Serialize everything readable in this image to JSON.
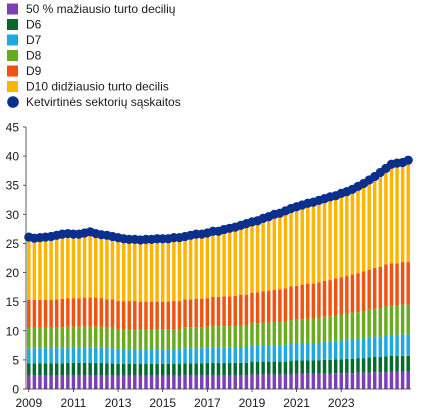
{
  "chart_data": {
    "type": "bar",
    "stacked": true,
    "legend_position": "top-left",
    "grid": false,
    "ylim": [
      0,
      45
    ],
    "y_ticks": [
      "0",
      "5",
      "10",
      "15",
      "20",
      "25",
      "30",
      "35",
      "40",
      "45"
    ],
    "x_tick_labels": [
      "2009",
      "2011",
      "2013",
      "2015",
      "2017",
      "2019",
      "2021",
      "2023"
    ],
    "x_quarter_start": "2009Q1",
    "series": [
      {
        "name": "50 % mažiausio turto decilių",
        "color": "#7b3fb6",
        "values": [
          2.4,
          2.4,
          2.4,
          2.4,
          2.4,
          2.4,
          2.4,
          2.4,
          2.4,
          2.4,
          2.4,
          2.4,
          2.4,
          2.4,
          2.4,
          2.4,
          2.3,
          2.3,
          2.3,
          2.3,
          2.3,
          2.3,
          2.3,
          2.3,
          2.3,
          2.3,
          2.3,
          2.3,
          2.4,
          2.4,
          2.4,
          2.4,
          2.4,
          2.4,
          2.4,
          2.4,
          2.4,
          2.4,
          2.4,
          2.4,
          2.5,
          2.5,
          2.5,
          2.5,
          2.5,
          2.5,
          2.5,
          2.5,
          2.6,
          2.6,
          2.6,
          2.6,
          2.6,
          2.6,
          2.6,
          2.7,
          2.7,
          2.7,
          2.7,
          2.8,
          2.8,
          2.8,
          2.9,
          2.9,
          2.9,
          3.0,
          3.0,
          3.0,
          3.0
        ]
      },
      {
        "name": "D6",
        "color": "#006b2c",
        "values": [
          2.0,
          2.0,
          2.0,
          2.0,
          2.0,
          2.0,
          2.0,
          2.1,
          2.1,
          2.1,
          2.1,
          2.1,
          2.1,
          2.1,
          2.0,
          2.0,
          2.0,
          2.0,
          2.0,
          2.0,
          2.0,
          2.0,
          2.0,
          2.0,
          2.0,
          2.0,
          2.0,
          2.0,
          2.0,
          2.0,
          2.0,
          2.0,
          2.1,
          2.1,
          2.1,
          2.1,
          2.1,
          2.1,
          2.1,
          2.1,
          2.2,
          2.2,
          2.2,
          2.2,
          2.2,
          2.2,
          2.2,
          2.3,
          2.3,
          2.3,
          2.3,
          2.3,
          2.3,
          2.4,
          2.4,
          2.4,
          2.4,
          2.5,
          2.5,
          2.5,
          2.5,
          2.6,
          2.6,
          2.6,
          2.7,
          2.7,
          2.7,
          2.7,
          2.7
        ]
      },
      {
        "name": "D7",
        "color": "#1ea8e0",
        "values": [
          2.6,
          2.6,
          2.6,
          2.6,
          2.6,
          2.6,
          2.6,
          2.6,
          2.6,
          2.6,
          2.6,
          2.6,
          2.6,
          2.6,
          2.6,
          2.6,
          2.5,
          2.5,
          2.5,
          2.5,
          2.5,
          2.5,
          2.5,
          2.5,
          2.5,
          2.5,
          2.5,
          2.5,
          2.6,
          2.6,
          2.6,
          2.6,
          2.6,
          2.6,
          2.6,
          2.6,
          2.6,
          2.7,
          2.7,
          2.7,
          2.7,
          2.7,
          2.8,
          2.8,
          2.8,
          2.8,
          2.9,
          2.9,
          2.9,
          3.0,
          3.0,
          3.0,
          3.0,
          3.1,
          3.1,
          3.2,
          3.2,
          3.2,
          3.3,
          3.3,
          3.4,
          3.4,
          3.5,
          3.5,
          3.6,
          3.6,
          3.6,
          3.7,
          3.7
        ]
      },
      {
        "name": "D8",
        "color": "#6aaa1f",
        "values": [
          3.5,
          3.5,
          3.5,
          3.5,
          3.5,
          3.5,
          3.6,
          3.6,
          3.6,
          3.6,
          3.6,
          3.6,
          3.6,
          3.6,
          3.5,
          3.5,
          3.5,
          3.5,
          3.5,
          3.5,
          3.5,
          3.5,
          3.5,
          3.5,
          3.5,
          3.5,
          3.5,
          3.5,
          3.6,
          3.6,
          3.6,
          3.6,
          3.6,
          3.7,
          3.7,
          3.7,
          3.7,
          3.7,
          3.8,
          3.8,
          3.8,
          3.9,
          3.9,
          3.9,
          4.0,
          4.0,
          4.0,
          4.1,
          4.1,
          4.1,
          4.2,
          4.2,
          4.3,
          4.3,
          4.4,
          4.4,
          4.5,
          4.5,
          4.6,
          4.6,
          4.7,
          4.8,
          4.8,
          4.9,
          5.0,
          5.0,
          5.0,
          5.1,
          5.1
        ]
      },
      {
        "name": "D9",
        "color": "#f2520f",
        "values": [
          4.8,
          4.8,
          4.8,
          4.8,
          4.8,
          4.9,
          4.9,
          4.9,
          4.9,
          4.9,
          5.0,
          5.0,
          5.0,
          4.9,
          4.9,
          4.9,
          4.8,
          4.8,
          4.8,
          4.8,
          4.7,
          4.7,
          4.7,
          4.7,
          4.7,
          4.7,
          4.8,
          4.8,
          4.8,
          4.8,
          4.9,
          4.9,
          4.9,
          5.0,
          5.0,
          5.1,
          5.1,
          5.1,
          5.2,
          5.2,
          5.3,
          5.3,
          5.4,
          5.5,
          5.5,
          5.6,
          5.7,
          5.8,
          5.8,
          5.9,
          6.0,
          6.0,
          6.1,
          6.2,
          6.2,
          6.3,
          6.4,
          6.5,
          6.6,
          6.7,
          6.8,
          6.9,
          7.0,
          7.1,
          7.2,
          7.3,
          7.3,
          7.3,
          7.3
        ]
      },
      {
        "name": "D10 didžiausio turto decilis",
        "color": "#ffb400",
        "values": [
          10.8,
          10.6,
          10.7,
          10.8,
          10.9,
          11.0,
          11.1,
          11.1,
          11.0,
          11.0,
          11.1,
          11.2,
          11.0,
          10.9,
          10.9,
          10.8,
          10.8,
          10.7,
          10.6,
          10.6,
          10.6,
          10.7,
          10.7,
          10.8,
          10.8,
          10.8,
          10.9,
          10.9,
          10.9,
          11.0,
          11.1,
          11.1,
          11.2,
          11.3,
          11.3,
          11.4,
          11.5,
          11.6,
          11.7,
          11.9,
          12.0,
          12.1,
          12.3,
          12.4,
          12.6,
          12.7,
          12.9,
          13.0,
          13.2,
          13.3,
          13.4,
          13.5,
          13.6,
          13.7,
          13.8,
          13.9,
          14.1,
          14.2,
          14.4,
          14.6,
          14.9,
          15.2,
          15.5,
          15.9,
          16.2,
          16.7,
          16.9,
          16.8,
          17.3
        ]
      },
      {
        "name": "Ketvirtinės sektorių sąskaitos",
        "color": "#0a2f8c",
        "type": "scatter",
        "values": [
          26.1,
          25.9,
          26.0,
          26.1,
          26.2,
          26.4,
          26.6,
          26.7,
          26.6,
          26.6,
          26.8,
          27.0,
          26.7,
          26.5,
          26.4,
          26.2,
          26.0,
          25.8,
          25.7,
          25.7,
          25.6,
          25.7,
          25.7,
          25.8,
          25.8,
          25.8,
          26.0,
          26.0,
          26.2,
          26.4,
          26.6,
          26.6,
          26.8,
          27.1,
          27.1,
          27.4,
          27.6,
          27.8,
          28.1,
          28.4,
          28.7,
          28.9,
          29.3,
          29.6,
          30.0,
          30.2,
          30.6,
          31.0,
          31.3,
          31.6,
          31.9,
          32.1,
          32.4,
          32.7,
          33.0,
          33.2,
          33.6,
          33.9,
          34.3,
          34.8,
          35.3,
          35.9,
          36.5,
          37.2,
          37.9,
          38.6,
          38.8,
          38.9,
          39.3
        ]
      }
    ]
  }
}
